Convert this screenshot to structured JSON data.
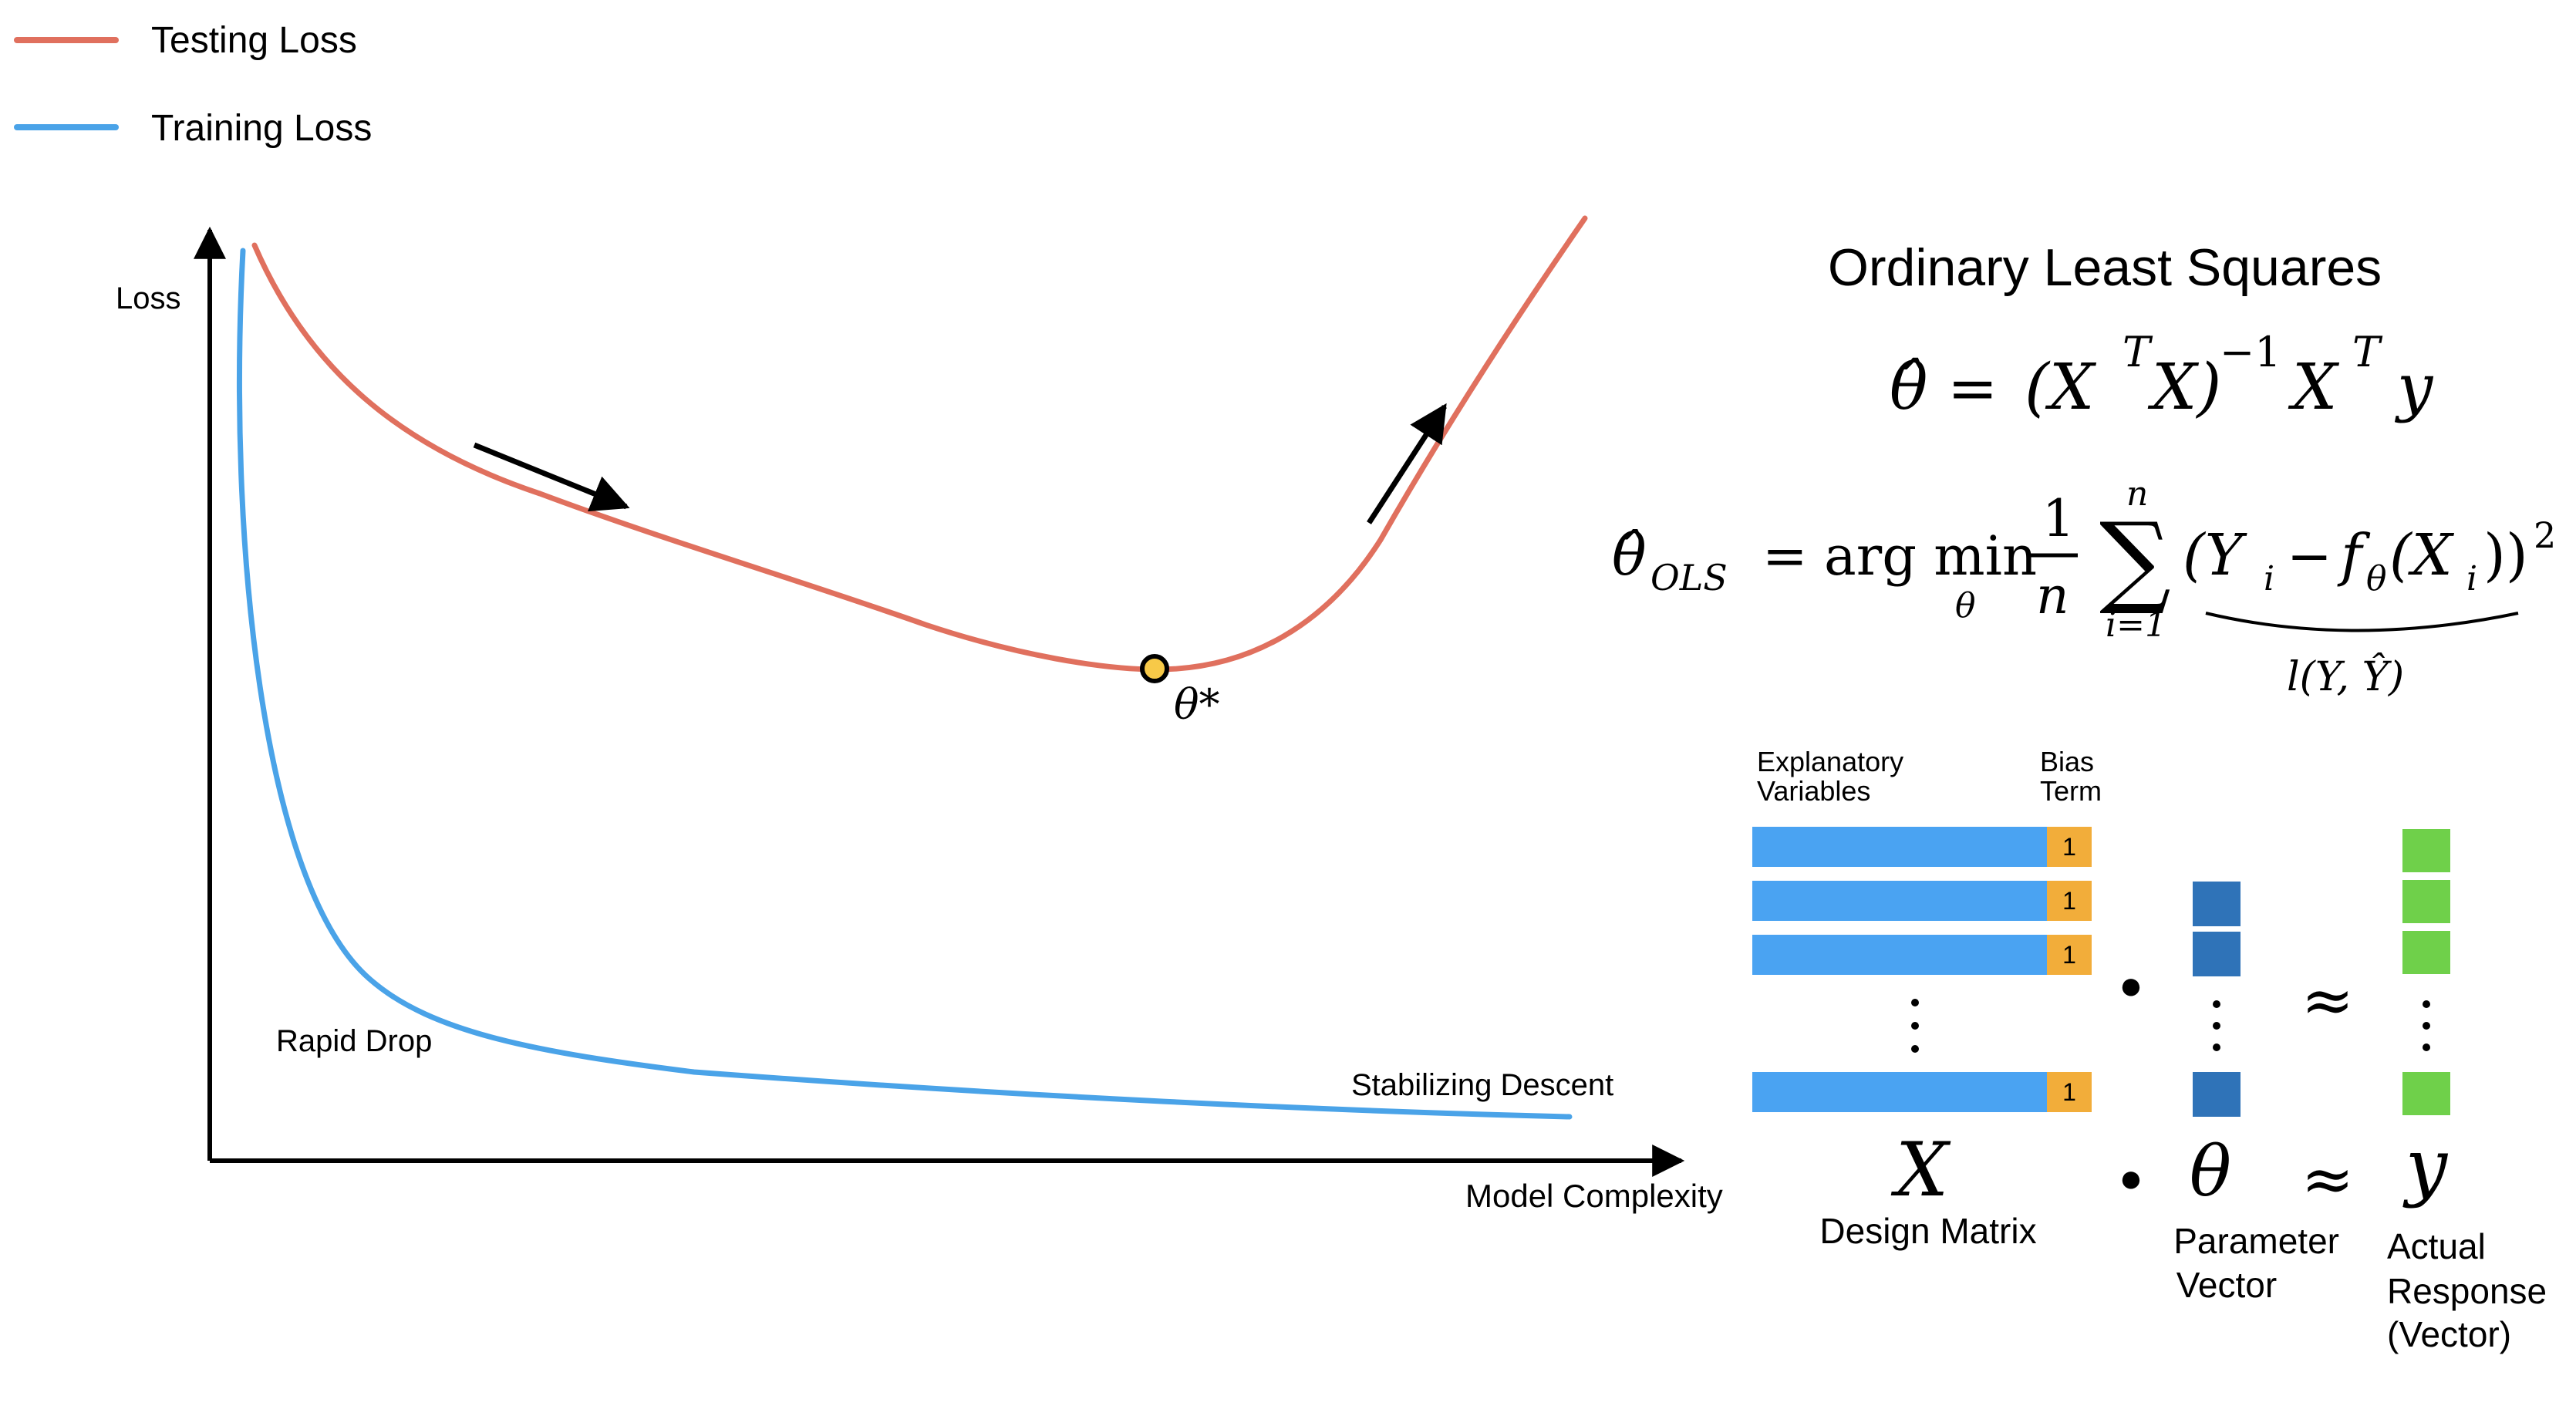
{
  "legend": {
    "items": [
      {
        "label": "Testing Loss",
        "color": "#e0705e"
      },
      {
        "label": "Training Loss",
        "color": "#4aa3e8"
      }
    ]
  },
  "plot": {
    "y_axis_label": "Loss",
    "x_axis_label": "Model Complexity",
    "optimum_label": "θ*",
    "optimum_color": "#f7c948",
    "training_annotations": [
      "Rapid Drop",
      "Stabilizing Descent"
    ]
  },
  "ols": {
    "title": "Ordinary Least Squares",
    "eq1": {
      "lhs": "θ̂",
      "op": "=",
      "rhs_open": "(X",
      "rhs_t1": "T",
      "rhs_mid": "X)",
      "rhs_exp": "−1",
      "rhs_x": "X",
      "rhs_t2": "T",
      "rhs_y": "y"
    },
    "eq2": {
      "lhs": "θ̂",
      "lhs_sub": "OLS",
      "op": "=",
      "argmin": "arg min",
      "argmin_sub": "θ",
      "frac_num": "1",
      "frac_den": "n",
      "sum": "∑",
      "sum_top": "n",
      "sum_bottom": "i=1",
      "term_open": "(Y",
      "term_sub_i1": "i",
      "term_minus": "−",
      "term_f": "f",
      "term_f_sub": "θ",
      "term_x": "(X",
      "term_sub_i2": "i",
      "term_close": "))",
      "term_sq": "2",
      "brace_label": "l(Y, Ŷ)"
    }
  },
  "matrix": {
    "explanatory_label": [
      "Explanatory",
      "Variables"
    ],
    "bias_label": [
      "Bias",
      "Term"
    ],
    "bias_value": "1",
    "colors": {
      "row": "#4aa3f2",
      "bias": "#f2ad3a",
      "param": "#2f73b8",
      "response": "#6fd04a"
    },
    "dot": "●",
    "approx": "≈",
    "x_symbol": "X",
    "x_caption": "Design Matrix",
    "theta_symbol": "θ",
    "theta_caption": [
      "Parameter",
      "Vector"
    ],
    "y_symbol": "y",
    "y_caption": [
      "Actual",
      "Response",
      "(Vector)"
    ]
  }
}
